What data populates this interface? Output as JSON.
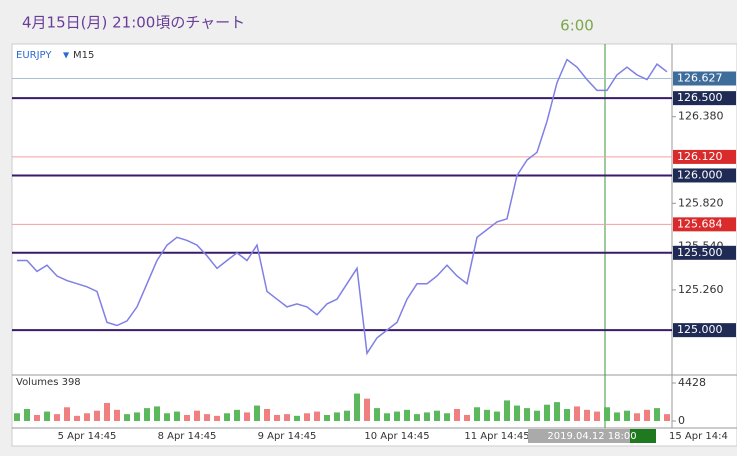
{
  "chart_data": {
    "type": "line",
    "title": "4月15日(月) 21:00頃のチャート",
    "marker_time": "6:00",
    "symbol": "EURJPY",
    "symbol_arrow": "▼",
    "timeframe": "M15",
    "crosshair_label": "2019.04.12 18:00",
    "cut_label": "15 Apr 14:4",
    "categories": [
      null,
      null,
      null,
      null,
      null,
      null,
      null,
      "5 Apr 14:45",
      null,
      null,
      null,
      null,
      null,
      null,
      null,
      null,
      null,
      "8 Apr 14:45",
      null,
      null,
      null,
      null,
      null,
      null,
      null,
      null,
      null,
      "9 Apr 14:45",
      null,
      null,
      null,
      null,
      null,
      null,
      null,
      null,
      null,
      null,
      "10 Apr 14:45",
      null,
      null,
      null,
      null,
      null,
      null,
      null,
      null,
      null,
      "11 Apr 14:45",
      null,
      null,
      null,
      null,
      null,
      null,
      null,
      null,
      null,
      null,
      null,
      null,
      null,
      null,
      null,
      null,
      null
    ],
    "series": [
      {
        "name": "EURJPY",
        "color": "#7f7fe6",
        "values": [
          125.45,
          125.45,
          125.38,
          125.42,
          125.35,
          125.32,
          125.3,
          125.28,
          125.25,
          125.05,
          125.03,
          125.06,
          125.15,
          125.3,
          125.45,
          125.55,
          125.6,
          125.58,
          125.55,
          125.48,
          125.4,
          125.45,
          125.5,
          125.45,
          125.55,
          125.25,
          125.2,
          125.15,
          125.17,
          125.15,
          125.1,
          125.17,
          125.2,
          125.3,
          125.4,
          124.85,
          124.95,
          125.0,
          125.05,
          125.2,
          125.3,
          125.3,
          125.35,
          125.42,
          125.35,
          125.3,
          125.6,
          125.65,
          125.7,
          125.72,
          126.0,
          126.1,
          126.15,
          126.35,
          126.6,
          126.75,
          126.7,
          126.62,
          126.55,
          126.55,
          126.65,
          126.7,
          126.65,
          126.62,
          126.72,
          126.67
        ]
      }
    ],
    "ylim": [
      124.71,
      126.85
    ],
    "yticks": [
      {
        "value": 126.38,
        "label": "126.380"
      },
      {
        "value": 125.82,
        "label": "125.820"
      },
      {
        "value": 125.54,
        "label": "125.540"
      },
      {
        "value": 125.26,
        "label": "125.260"
      }
    ],
    "hlines": [
      {
        "value": 126.627,
        "label": "126.627",
        "color": "#a9bfd6",
        "label_color": "#3e6d9c",
        "width": 1
      },
      {
        "value": 126.5,
        "label": "126.500",
        "color": "#3a1a6b",
        "label_color": "#1f2a55",
        "width": 2
      },
      {
        "value": 126.12,
        "label": "126.120",
        "color": "#f0a0a0",
        "label_color": "#d92b2b",
        "width": 1
      },
      {
        "value": 126.0,
        "label": "126.000",
        "color": "#3a1a6b",
        "label_color": "#1f2a55",
        "width": 2
      },
      {
        "value": 125.684,
        "label": "125.684",
        "color": "#f0a0a0",
        "label_color": "#d92b2b",
        "width": 1
      },
      {
        "value": 125.5,
        "label": "125.500",
        "color": "#3a1a6b",
        "label_color": "#1f2a55",
        "width": 2
      },
      {
        "value": 125.0,
        "label": "125.000",
        "color": "#3a1a6b",
        "label_color": "#1f2a55",
        "width": 2
      }
    ],
    "volume": {
      "title": "Volumes 398",
      "ylim": [
        0,
        4428
      ],
      "yticks": [
        0,
        4428
      ],
      "up_color": "#5cb85c",
      "down_color": "#f08080",
      "values": [
        900,
        1400,
        700,
        1100,
        800,
        1600,
        600,
        900,
        1200,
        2100,
        1300,
        800,
        1000,
        1500,
        1700,
        900,
        1100,
        700,
        1200,
        800,
        600,
        900,
        1300,
        1000,
        1800,
        1400,
        700,
        800,
        600,
        900,
        1100,
        700,
        1000,
        1200,
        3200,
        2600,
        1500,
        900,
        1100,
        1300,
        800,
        1000,
        1200,
        900,
        1400,
        700,
        1600,
        1300,
        1100,
        2400,
        1800,
        1500,
        1200,
        1900,
        2200,
        1400,
        1700,
        1300,
        1100,
        1600,
        1000,
        1200,
        900,
        1300,
        1500,
        800
      ]
    }
  }
}
